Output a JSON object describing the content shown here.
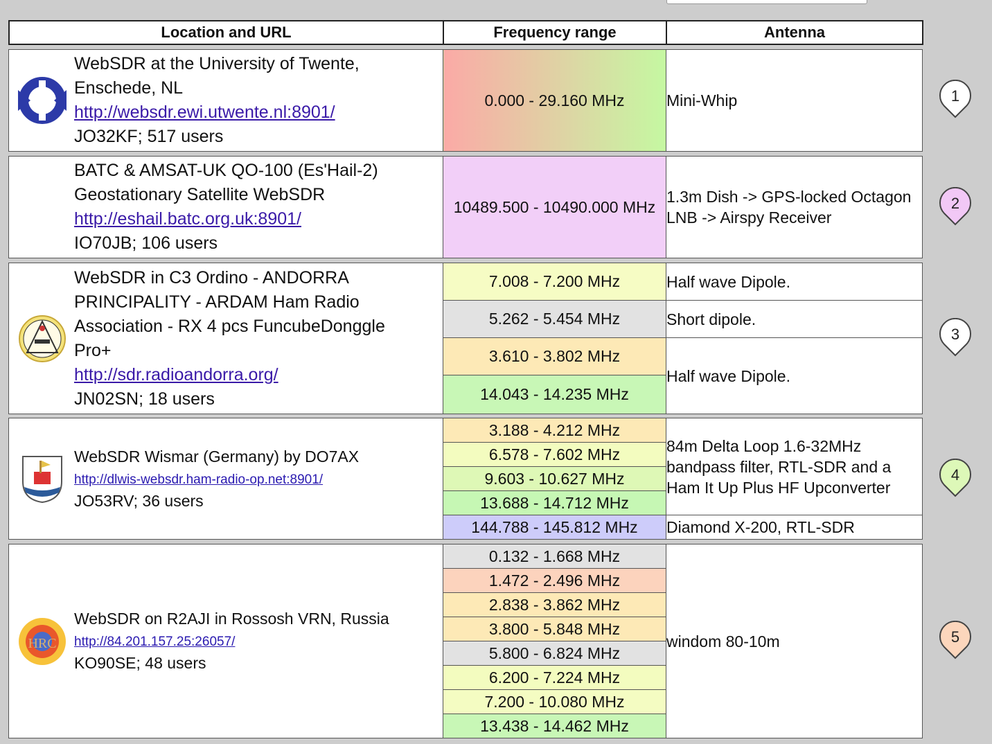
{
  "header": {
    "col_location": "Location and URL",
    "col_frequency": "Frequency range",
    "col_antenna": "Antenna"
  },
  "entries": [
    {
      "title": "WebSDR at the University of Twente, Enschede, NL",
      "url": "http://websdr.ewi.utwente.nl:8901/",
      "info": "JO32KF; 517 users",
      "logo": "utwente-logo-icon",
      "marker": "1",
      "marker_color": "#ffffff",
      "bands": [
        {
          "range": "0.000 - 29.160 MHz",
          "color": "gradient",
          "antenna": "Mini-Whip"
        }
      ]
    },
    {
      "title": "BATC & AMSAT-UK QO-100 (Es'Hail-2) Geostationary Satellite WebSDR",
      "url": "http://eshail.batc.org.uk:8901/",
      "info": "IO70JB; 106 users",
      "logo": "",
      "marker": "2",
      "marker_color": "#f2c8f6",
      "bands": [
        {
          "range": "10489.500 - 10490.000 MHz",
          "color": "#f2cff8",
          "antenna": "1.3m Dish -> GPS-locked Octagon LNB -> Airspy Receiver"
        }
      ]
    },
    {
      "title": "WebSDR in C3 Ordino - ANDORRA PRINCIPALITY - ARDAM Ham Radio Association - RX 4 pcs FuncubeDonggle Pro+",
      "url": "http://sdr.radioandorra.org/",
      "info": "JN02SN; 18 users",
      "logo": "ardam-logo-icon",
      "marker": "3",
      "marker_color": "#ffffff",
      "bands": [
        {
          "range": "7.008 - 7.200 MHz",
          "color": "#f6fcc4",
          "antenna": "Half wave Dipole."
        },
        {
          "range": "5.262 - 5.454 MHz",
          "color": "#e2e2e2",
          "antenna": "Short dipole."
        },
        {
          "range": "3.610 - 3.802 MHz",
          "color": "#fde9b6",
          "antenna": "Half wave Dipole."
        },
        {
          "range": "14.043 - 14.235 MHz",
          "color": "#c8f7b6",
          "antenna": ""
        }
      ]
    },
    {
      "title": "WebSDR Wismar (Germany) by DO7AX",
      "url": "http://dlwis-websdr.ham-radio-op.net:8901/",
      "info": "JO53RV; 36 users",
      "logo": "wismar-crest-icon",
      "marker": "4",
      "marker_color": "#ddf8b8",
      "bands": [
        {
          "range": "3.188 - 4.212 MHz",
          "color": "#fde9b6",
          "antenna": "84m Delta Loop 1.6-32MHz bandpass filter, RTL-SDR and a Ham It Up Plus HF Upconverter"
        },
        {
          "range": "6.578 - 7.602 MHz",
          "color": "#f3fcbf",
          "antenna": ""
        },
        {
          "range": "9.603 - 10.627 MHz",
          "color": "#def8b6",
          "antenna": ""
        },
        {
          "range": "13.688 - 14.712 MHz",
          "color": "#c6f7b4",
          "antenna": ""
        },
        {
          "range": "144.788 - 145.812 MHz",
          "color": "#cdccfa",
          "antenna": "Diamond X-200, RTL-SDR"
        }
      ]
    },
    {
      "title": "WebSDR on R2AJI in Rossosh VRN, Russia",
      "url": "http://84.201.157.25:26057/",
      "info": "KO90SE; 48 users",
      "logo": "hrc-logo-icon",
      "logo_text": "HRC",
      "marker": "5",
      "marker_color": "#fcd6bc",
      "bands": [
        {
          "range": "0.132 - 1.668 MHz",
          "color": "#e2e2e2",
          "antenna": "windom 80-10m"
        },
        {
          "range": "1.472 - 2.496 MHz",
          "color": "#fcd3bd",
          "antenna": ""
        },
        {
          "range": "2.838 - 3.862 MHz",
          "color": "#fde9b6",
          "antenna": ""
        },
        {
          "range": "3.800 - 5.848 MHz",
          "color": "#fde9b6",
          "antenna": ""
        },
        {
          "range": "5.800 - 6.824 MHz",
          "color": "#e2e2e2",
          "antenna": ""
        },
        {
          "range": "6.200 - 7.224 MHz",
          "color": "#f3fcbf",
          "antenna": ""
        },
        {
          "range": "7.200 - 10.080 MHz",
          "color": "#f4fcc2",
          "antenna": ""
        },
        {
          "range": "13.438 - 14.462 MHz",
          "color": "#c8f7b6",
          "antenna": ""
        }
      ]
    }
  ]
}
